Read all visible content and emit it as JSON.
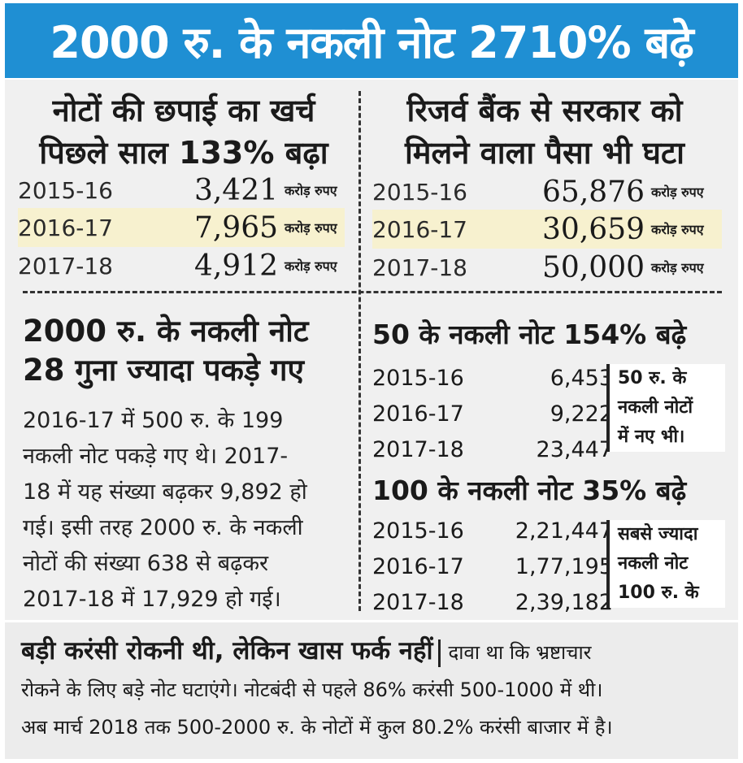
{
  "headline": "2000 रु. के नकली नोट 2710% बढ़े",
  "printing_cost": {
    "title_lines": [
      "नोटों की छपाई का खर्च",
      "पिछले साल 133% बढ़ा"
    ],
    "rows": [
      {
        "year": "2015-16",
        "amount": "3,421",
        "unit": "करोड़ रुपए"
      },
      {
        "year": "2016-17",
        "amount": "7,965",
        "unit": "करोड़ रुपए"
      },
      {
        "year": "2017-18",
        "amount": "4,912",
        "unit": "करोड़ रुपए"
      }
    ]
  },
  "rbi_transfer": {
    "title_lines": [
      "रिजर्व बैंक से सरकार को",
      "मिलने वाला पैसा भी घटा"
    ],
    "rows": [
      {
        "year": "2015-16",
        "amount": "65,876",
        "unit": "करोड़ रुपए"
      },
      {
        "year": "2016-17",
        "amount": "30,659",
        "unit": "करोड़ रुपए"
      },
      {
        "year": "2017-18",
        "amount": "50,000",
        "unit": "करोड़ रुपए"
      }
    ]
  },
  "fake_2000": {
    "title_lines": [
      "2000 रु. के नकली नोट",
      "28 गुना ज्यादा पकड़े गए"
    ],
    "paragraph_lines": [
      "2016-17 में 500 रु. के 199",
      "नकली नोट पकड़े गए थे। 2017-",
      "18 में यह संख्या बढ़कर 9,892 हो",
      "गई। इसी तरह 2000 रु. के नकली",
      "नोटों की संख्या 638 से बढ़कर",
      "2017-18 में 17,929 हो गई।"
    ]
  },
  "fake_50": {
    "title": "50 के नकली नोट 154% बढ़े",
    "rows": [
      {
        "year": "2015-16",
        "count": "6,453"
      },
      {
        "year": "2016-17",
        "count": "9,222"
      },
      {
        "year": "2017-18",
        "count": "23,447"
      }
    ],
    "note_lines": [
      "50 रु. के",
      "नकली नोटों",
      "में नए भी।"
    ]
  },
  "fake_100": {
    "title": "100 के नकली नोट 35% बढ़े",
    "rows": [
      {
        "year": "2015-16",
        "count": "2,21,447"
      },
      {
        "year": "2016-17",
        "count": "1,77,195"
      },
      {
        "year": "2017-18",
        "count": "2,39,182"
      }
    ],
    "note_lines": [
      "सबसे ज्यादा",
      "नकली नोट",
      "100 रु. के"
    ]
  },
  "bottom": {
    "heading": "बड़ी करंसी रोकनी थी, लेकिन खास फर्क नहीं",
    "line1_rest": "दावा था कि भ्रष्टाचार",
    "line2": "रोकने के लिए बड़े नोट घटाएंगे। नोटबंदी से पहले 86% करंसी 500-1000 में थी।",
    "line3": "अब मार्च 2018 तक 500-2000 रु. के नोटों में कुल 80.2% करंसी बाजार में है।"
  },
  "colors": {
    "banner": "#1f8fd3",
    "highlight_row": "#f7f1cf",
    "panel_bg": "#f0f0f0"
  }
}
